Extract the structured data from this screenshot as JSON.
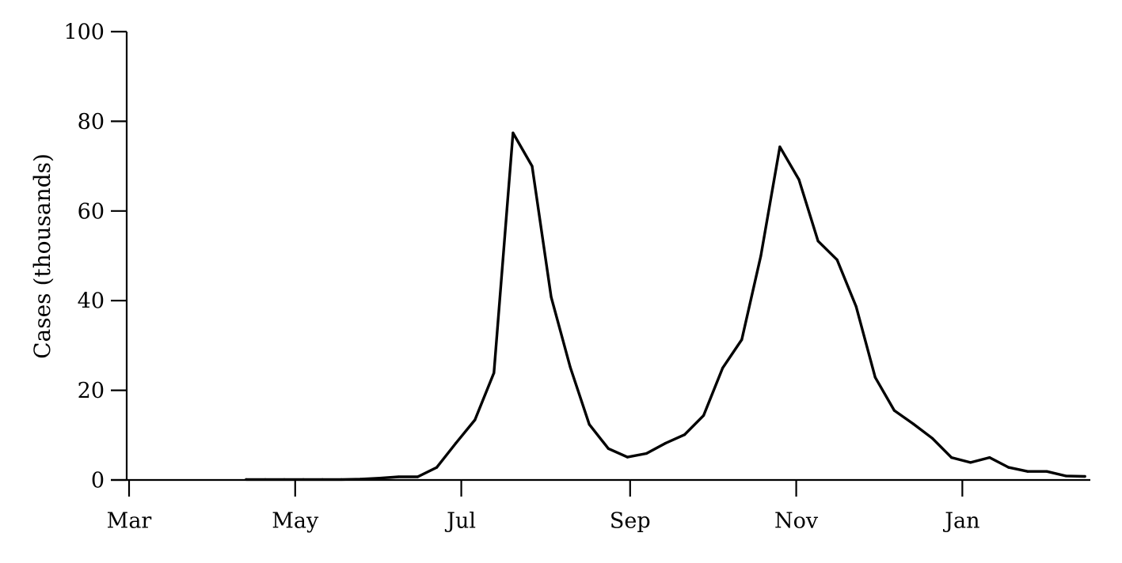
{
  "chart_data": {
    "type": "line",
    "title": "",
    "xlabel": "",
    "ylabel": "Cases (thousands)",
    "ylim": [
      0,
      100
    ],
    "grid": false,
    "legend": "none",
    "yticks": [
      0,
      20,
      40,
      60,
      80,
      100
    ],
    "xticks": [
      {
        "label": "Mar",
        "date": "2000-03-01"
      },
      {
        "label": "May",
        "date": "2000-05-01"
      },
      {
        "label": "Jul",
        "date": "2000-07-01"
      },
      {
        "label": "Sep",
        "date": "2000-09-01"
      },
      {
        "label": "Nov",
        "date": "2000-11-01"
      },
      {
        "label": "Jan",
        "date": "2001-01-01"
      }
    ],
    "xlim": [
      "2000-03-01",
      "2001-02-17"
    ],
    "line_color": "#000000",
    "series": [
      {
        "x": [
          "2000-04-13",
          "2000-04-20",
          "2000-04-27",
          "2000-05-04",
          "2000-05-11",
          "2000-05-18",
          "2000-05-25",
          "2000-06-01",
          "2000-06-08",
          "2000-06-15",
          "2000-06-22",
          "2000-06-29",
          "2000-07-06",
          "2000-07-13",
          "2000-07-20",
          "2000-07-27",
          "2000-08-03",
          "2000-08-10",
          "2000-08-17",
          "2000-08-24",
          "2000-08-31",
          "2000-09-07",
          "2000-09-14",
          "2000-09-21",
          "2000-09-28",
          "2000-10-05",
          "2000-10-12",
          "2000-10-19",
          "2000-10-26",
          "2000-11-02",
          "2000-11-09",
          "2000-11-16",
          "2000-11-23",
          "2000-11-30",
          "2000-12-07",
          "2000-12-14",
          "2000-12-21",
          "2000-12-28",
          "2001-01-04",
          "2001-01-11",
          "2001-01-18",
          "2001-01-25",
          "2001-02-01",
          "2001-02-08",
          "2001-02-15"
        ],
        "values": [
          0.1,
          0.1,
          0.1,
          0.1,
          0.1,
          0.1,
          0.2,
          0.4,
          0.7,
          0.7,
          2.8,
          8.2,
          13.4,
          23.9,
          77.4,
          70.0,
          40.8,
          25.2,
          12.4,
          7.0,
          5.1,
          5.9,
          8.2,
          10.1,
          14.4,
          25.0,
          31.3,
          50.0,
          74.3,
          67.0,
          53.3,
          49.1,
          38.7,
          22.9,
          15.5,
          12.5,
          9.3,
          5.0,
          3.9,
          5.0,
          2.8,
          1.9,
          1.9,
          0.9,
          0.8
        ]
      }
    ]
  }
}
